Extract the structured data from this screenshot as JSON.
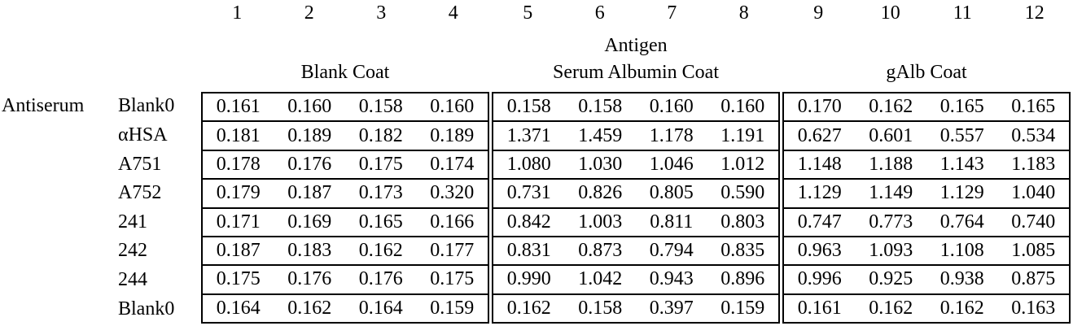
{
  "page": {
    "antiserum_label": "Antiserum",
    "antigen_label": "Antigen",
    "column_numbers": [
      "1",
      "2",
      "3",
      "4",
      "5",
      "6",
      "7",
      "8",
      "9",
      "10",
      "11",
      "12"
    ],
    "coat_groups": [
      "Blank Coat",
      "Serum Albumin Coat",
      "gAlb Coat"
    ],
    "rows": [
      {
        "label": "Blank0",
        "cells": [
          "0.161",
          "0.160",
          "0.158",
          "0.160",
          "0.158",
          "0.158",
          "0.160",
          "0.160",
          "0.170",
          "0.162",
          "0.165",
          "0.165"
        ]
      },
      {
        "label": "αHSA",
        "cells": [
          "0.181",
          "0.189",
          "0.182",
          "0.189",
          "1.371",
          "1.459",
          "1.178",
          "1.191",
          "0.627",
          "0.601",
          "0.557",
          "0.534"
        ]
      },
      {
        "label": "A751",
        "cells": [
          "0.178",
          "0.176",
          "0.175",
          "0.174",
          "1.080",
          "1.030",
          "1.046",
          "1.012",
          "1.148",
          "1.188",
          "1.143",
          "1.183"
        ]
      },
      {
        "label": "A752",
        "cells": [
          "0.179",
          "0.187",
          "0.173",
          "0.320",
          "0.731",
          "0.826",
          "0.805",
          "0.590",
          "1.129",
          "1.149",
          "1.129",
          "1.040"
        ]
      },
      {
        "label": "241",
        "cells": [
          "0.171",
          "0.169",
          "0.165",
          "0.166",
          "0.842",
          "1.003",
          "0.811",
          "0.803",
          "0.747",
          "0.773",
          "0.764",
          "0.740"
        ]
      },
      {
        "label": "242",
        "cells": [
          "0.187",
          "0.183",
          "0.162",
          "0.177",
          "0.831",
          "0.873",
          "0.794",
          "0.835",
          "0.963",
          "1.093",
          "1.108",
          "1.085"
        ]
      },
      {
        "label": "244",
        "cells": [
          "0.175",
          "0.176",
          "0.176",
          "0.175",
          "0.990",
          "1.042",
          "0.943",
          "0.896",
          "0.996",
          "0.925",
          "0.938",
          "0.875"
        ]
      },
      {
        "label": "Blank0",
        "cells": [
          "0.164",
          "0.162",
          "0.164",
          "0.159",
          "0.162",
          "0.158",
          "0.397",
          "0.159",
          "0.161",
          "0.162",
          "0.162",
          "0.163"
        ]
      }
    ]
  }
}
